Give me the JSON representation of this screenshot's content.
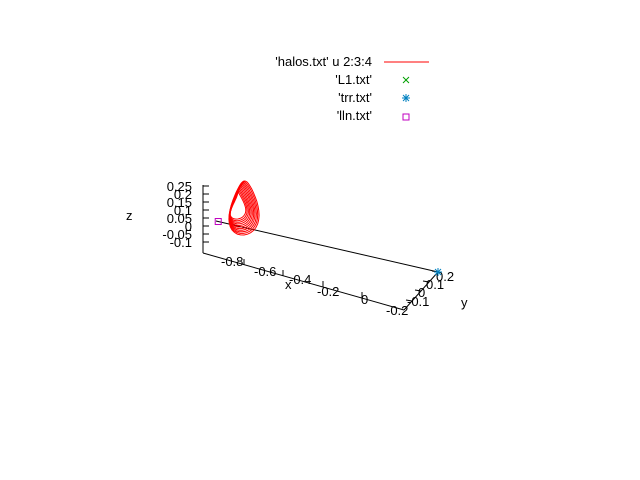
{
  "chart_data": {
    "type": "scatter",
    "title": "",
    "axes": {
      "x": {
        "label": "x",
        "ticks": [
          "-0.8",
          "-0.6",
          "-0.4",
          "-0.2",
          "0"
        ]
      },
      "y": {
        "label": "y",
        "ticks": [
          "-0.2",
          "-0.1",
          "0",
          "0.1",
          "0.2"
        ]
      },
      "z": {
        "label": "z",
        "ticks": [
          "-0.1",
          "-0.05",
          "0",
          "0.05",
          "0.1",
          "0.15",
          "0.2",
          "0.25"
        ]
      }
    },
    "grid": false,
    "legend_position": "top-right",
    "series": [
      {
        "name": "'halos.txt' u 2:3:4",
        "style": "lines",
        "color": "#ff0000",
        "description_points": []
      },
      {
        "name": "'L1.txt'",
        "style": "points",
        "marker": "x",
        "color": "#00a000",
        "points": []
      },
      {
        "name": "'trr.txt'",
        "style": "points",
        "marker": "star",
        "color": "#0080c0",
        "points": [
          {
            "x": 0.0,
            "y": 0.0,
            "z": 0.0
          }
        ]
      },
      {
        "name": "'lln.txt'",
        "style": "points",
        "marker": "square",
        "color": "#c000c0",
        "points": [
          {
            "x": -0.99,
            "y": 0.0,
            "z": 0.0
          }
        ]
      }
    ]
  }
}
